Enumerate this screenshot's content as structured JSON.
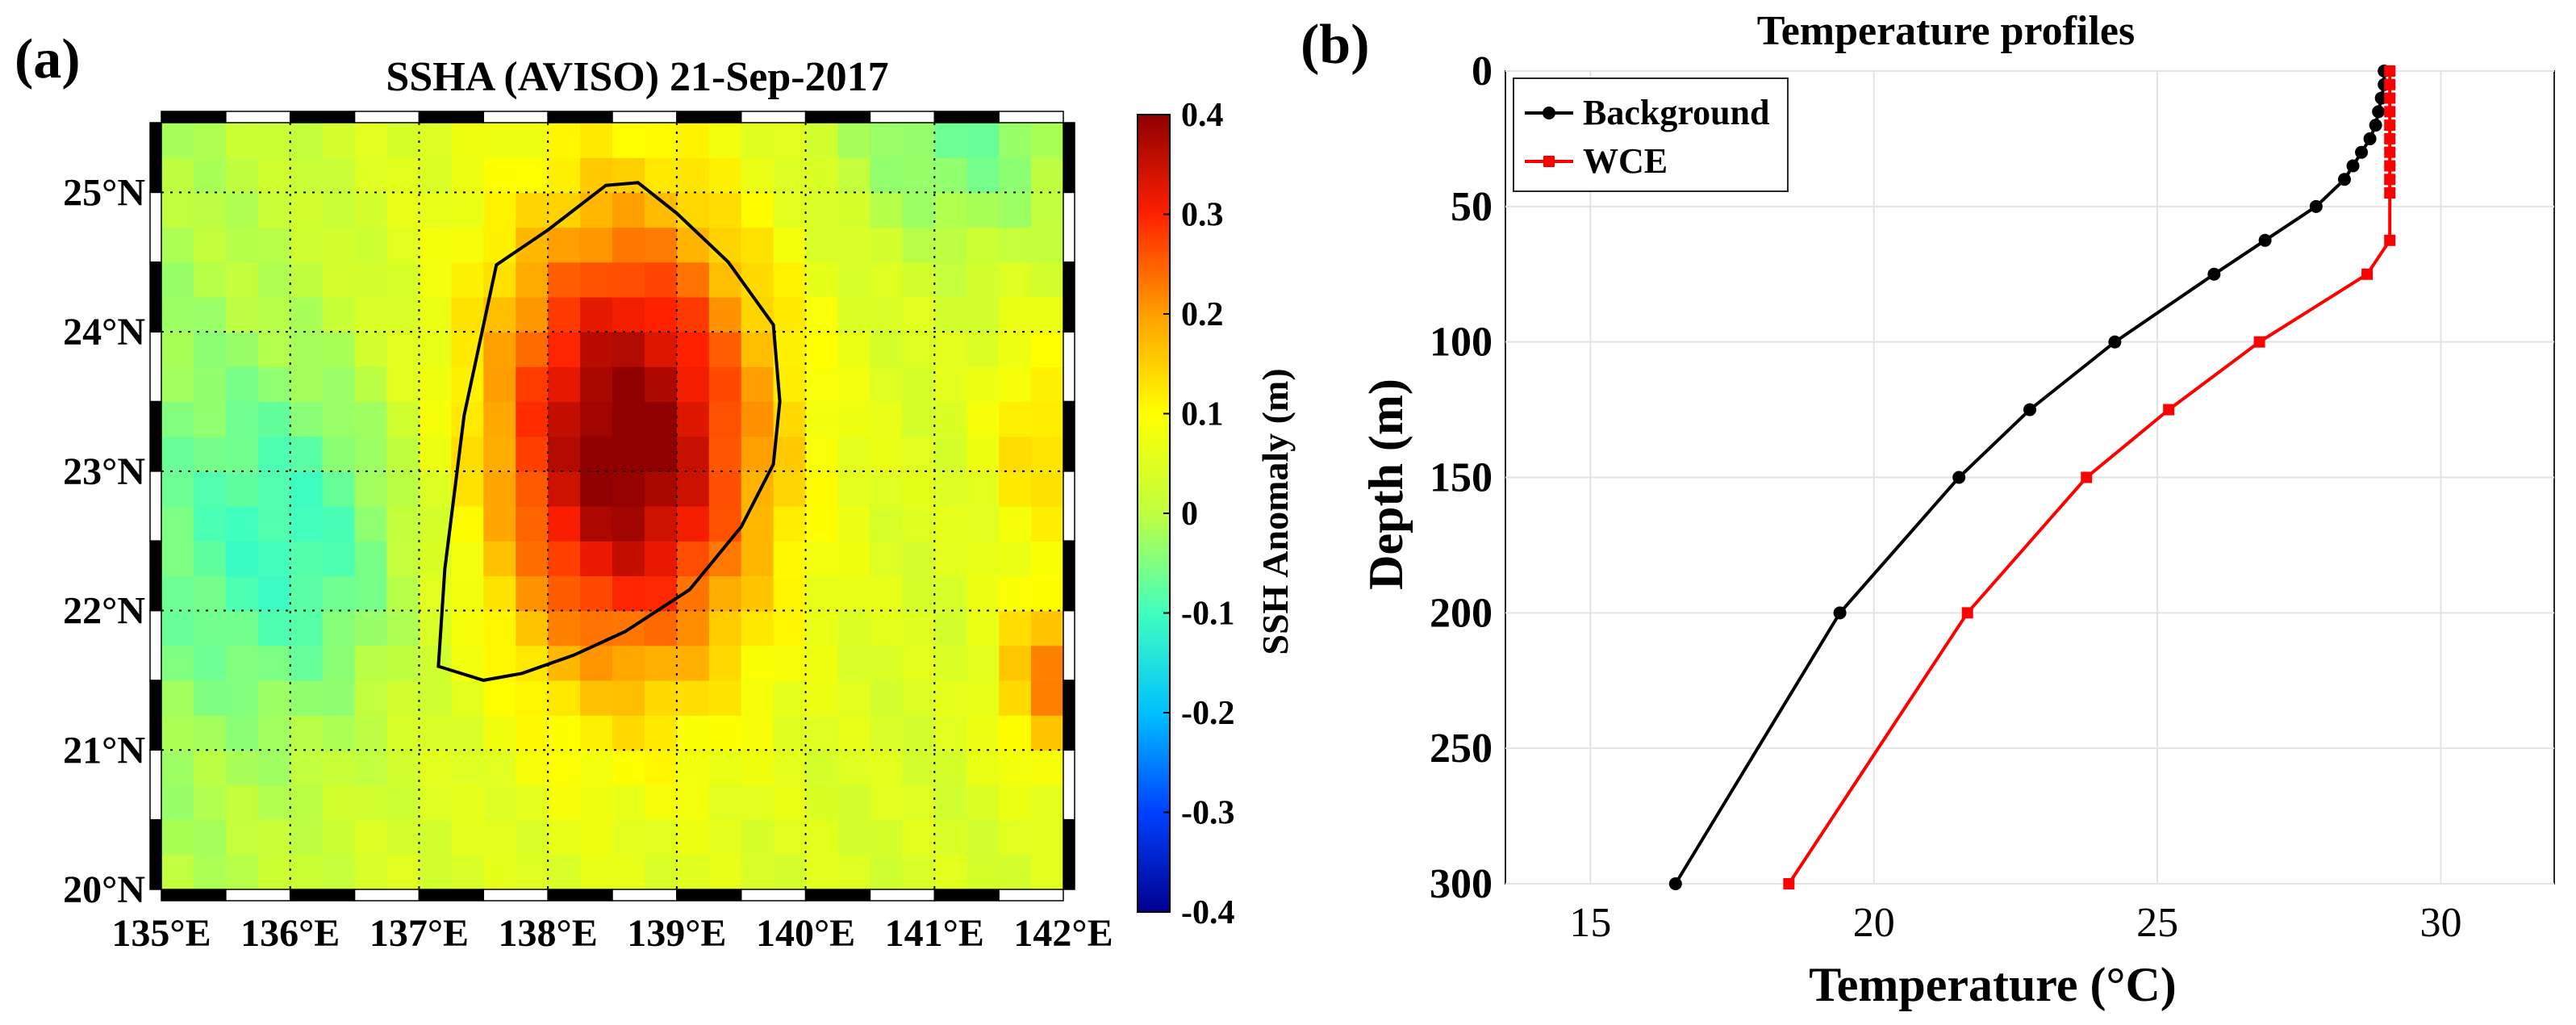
{
  "panel_a": {
    "label": "(a)",
    "title": "SSHA (AVISO)  21-Sep-2017",
    "colorbar_label": "SSH Anomaly (m)",
    "colorbar_ticks": [
      "0.4",
      "0.3",
      "0.2",
      "0.1",
      "0",
      "-0.1",
      "-0.2",
      "-0.3",
      "-0.4"
    ],
    "lon_ticks": [
      "135°E",
      "136°E",
      "137°E",
      "138°E",
      "139°E",
      "140°E",
      "141°E",
      "142°E"
    ],
    "lat_ticks": [
      "25°N",
      "24°N",
      "23°N",
      "22°N",
      "21°N",
      "20°N"
    ]
  },
  "panel_b": {
    "label": "(b)",
    "title": "Temperature profiles",
    "xlabel": "Temperature (°C)",
    "ylabel": "Depth (m)",
    "x_ticks": [
      "15",
      "20",
      "25",
      "30"
    ],
    "y_ticks": [
      "0",
      "50",
      "100",
      "150",
      "200",
      "250",
      "300"
    ],
    "legend_background": "Background",
    "legend_wce": "WCE"
  },
  "colors": {
    "background_series": "#000000",
    "wce_series": "#ff0000",
    "colormap": [
      "#00008f",
      "#0040ff",
      "#00c0ff",
      "#40ffbf",
      "#c0ff40",
      "#ffff00",
      "#ff9f00",
      "#ff2000",
      "#8f0000"
    ]
  },
  "chart_data": [
    {
      "type": "heatmap",
      "title": "SSHA (AVISO)  21-Sep-2017",
      "xlabel": "",
      "ylabel": "",
      "x_range": [
        135,
        142
      ],
      "y_range": [
        20,
        25.5
      ],
      "x_unit": "°E",
      "y_unit": "°N",
      "value_label": "SSH Anomaly (m)",
      "value_range": [
        -0.4,
        0.4
      ],
      "grid": true,
      "grid_step": 0.25,
      "features": [
        {
          "kind": "warm core eddy",
          "center": [
            138.6,
            23.2
          ],
          "peak": 0.38,
          "radius_lon": 1.1,
          "radius_lat": 1.7
        },
        {
          "kind": "cool anomaly",
          "center": [
            136.1,
            22.5
          ],
          "peak": -0.12,
          "radius_lon": 1.1,
          "radius_lat": 1.3
        },
        {
          "kind": "cool anomaly",
          "center": [
            141.2,
            25.4
          ],
          "peak": -0.1,
          "radius_lon": 1.0,
          "radius_lat": 0.8
        },
        {
          "kind": "warm anomaly",
          "center": [
            141.9,
            21.5
          ],
          "peak": 0.18,
          "radius_lon": 0.4,
          "radius_lat": 0.6
        },
        {
          "kind": "warm anomaly",
          "center": [
            141.8,
            23.2
          ],
          "peak": 0.1,
          "radius_lon": 0.4,
          "radius_lat": 0.8
        }
      ],
      "contour": {
        "lon": [
          138.0,
          138.45,
          138.7,
          139.0,
          139.4,
          139.75,
          139.8,
          139.75,
          139.5,
          139.1,
          138.6,
          138.2,
          137.8,
          137.5,
          137.15,
          137.2,
          137.35,
          137.6,
          138.0
        ],
        "lat": [
          24.73,
          25.05,
          25.07,
          24.85,
          24.5,
          24.05,
          23.5,
          23.05,
          22.6,
          22.15,
          21.85,
          21.68,
          21.55,
          21.5,
          21.6,
          22.3,
          23.4,
          24.48,
          24.73
        ]
      },
      "colorbar_ticks": [
        0.4,
        0.3,
        0.2,
        0.1,
        0,
        -0.1,
        -0.2,
        -0.3,
        -0.4
      ]
    },
    {
      "type": "line",
      "title": "Temperature profiles",
      "xlabel": "Temperature (°C)",
      "ylabel": "Depth (m)",
      "xlim": [
        13.5,
        32
      ],
      "ylim": [
        300,
        0
      ],
      "x_ticks": [
        15,
        20,
        25,
        30
      ],
      "y_ticks": [
        0,
        50,
        100,
        150,
        200,
        250,
        300
      ],
      "grid": true,
      "legend": "top-left",
      "series": [
        {
          "name": "Background",
          "marker": "circle",
          "x": [
            29.0,
            29.0,
            28.95,
            28.9,
            28.85,
            28.75,
            28.6,
            28.45,
            28.3,
            27.8,
            26.9,
            26.0,
            24.25,
            22.75,
            21.5,
            19.4,
            16.5
          ],
          "y": [
            0,
            5,
            10,
            15,
            20,
            25,
            30,
            35,
            40,
            50,
            62.5,
            75,
            100,
            125,
            150,
            200,
            300
          ]
        },
        {
          "name": "WCE",
          "marker": "square",
          "x": [
            29.1,
            29.1,
            29.1,
            29.1,
            29.1,
            29.1,
            29.1,
            29.1,
            29.1,
            29.1,
            29.1,
            28.7,
            26.8,
            25.2,
            23.75,
            21.65,
            18.5
          ],
          "y": [
            0,
            5,
            10,
            15,
            20,
            25,
            30,
            35,
            40,
            45,
            62.5,
            75,
            100,
            125,
            150,
            200,
            300
          ]
        }
      ]
    }
  ]
}
